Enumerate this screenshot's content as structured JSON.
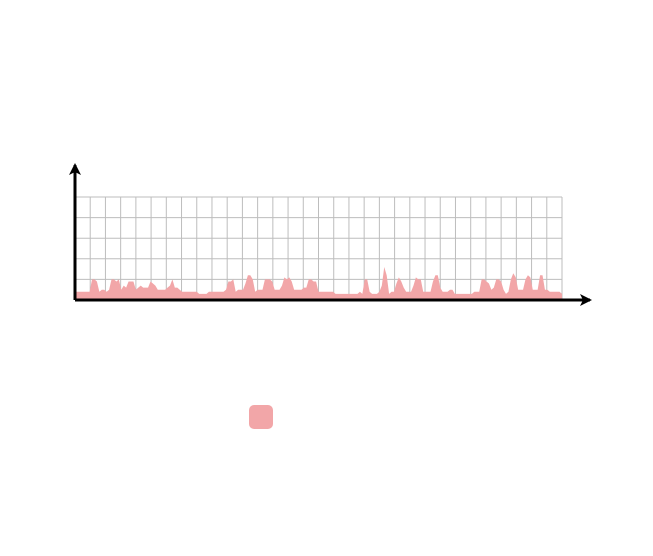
{
  "chart_data": {
    "type": "area",
    "title": "",
    "xlabel": "",
    "ylabel": "",
    "grid": true,
    "legend": "bottom-center",
    "xlim": [
      0,
      200
    ],
    "ylim": [
      0,
      50
    ],
    "x": [
      0,
      1,
      2,
      3,
      4,
      5,
      6,
      7,
      8,
      9,
      10,
      11,
      12,
      13,
      14,
      15,
      16,
      17,
      18,
      19,
      20,
      21,
      22,
      23,
      24,
      25,
      26,
      27,
      28,
      29,
      30,
      31,
      32,
      33,
      34,
      35,
      36,
      37,
      38,
      39,
      40,
      41,
      42,
      43,
      44,
      45,
      46,
      47,
      48,
      49,
      50,
      51,
      52,
      53,
      54,
      55,
      56,
      57,
      58,
      59,
      60,
      61,
      62,
      63,
      64,
      65,
      66,
      67,
      68,
      69,
      70,
      71,
      72,
      73,
      74,
      75,
      76,
      77,
      78,
      79,
      80,
      81,
      82,
      83,
      84,
      85,
      86,
      87,
      88,
      89,
      90,
      91,
      92,
      93,
      94,
      95,
      96,
      97,
      98,
      99,
      100,
      101,
      102,
      103,
      104,
      105,
      106,
      107,
      108,
      109,
      110,
      111,
      112,
      113,
      114,
      115,
      116,
      117,
      118,
      119,
      120,
      121,
      122,
      123,
      124,
      125,
      126,
      127,
      128,
      129,
      130,
      131,
      132,
      133,
      134,
      135,
      136,
      137,
      138,
      139,
      140,
      141,
      142,
      143,
      144,
      145,
      146,
      147,
      148,
      149,
      150,
      151,
      152,
      153,
      154,
      155,
      156,
      157,
      158,
      159,
      160,
      161,
      162,
      163,
      164,
      165,
      166,
      167,
      168,
      169,
      170,
      171,
      172,
      173,
      174,
      175,
      176,
      177,
      178,
      179,
      180,
      181,
      182,
      183,
      184,
      185,
      186,
      187,
      188,
      189,
      190,
      191,
      192,
      193,
      194,
      195,
      196,
      197,
      198,
      199,
      200
    ],
    "series": [
      {
        "color": "#f2a6a8",
        "values": [
          4,
          4,
          4,
          4,
          4,
          4,
          4,
          10,
          10,
          9,
          4,
          5,
          5,
          4,
          5,
          10,
          10,
          9,
          10,
          5,
          7,
          6,
          9,
          9,
          9,
          5,
          6,
          7,
          6,
          6,
          6,
          9,
          8,
          7,
          5,
          5,
          5,
          5,
          6,
          7,
          10,
          6,
          6,
          5,
          4,
          4,
          4,
          4,
          4,
          4,
          4,
          3,
          3,
          3,
          3,
          4,
          4,
          4,
          4,
          4,
          4,
          4,
          5,
          9,
          9,
          10,
          4,
          5,
          5,
          5,
          8,
          12,
          12,
          10,
          4,
          5,
          5,
          5,
          10,
          10,
          10,
          9,
          5,
          5,
          5,
          7,
          11,
          10,
          11,
          9,
          5,
          5,
          5,
          5,
          6,
          6,
          10,
          10,
          9,
          9,
          4,
          4,
          4,
          4,
          4,
          4,
          4,
          3,
          3,
          3,
          3,
          3,
          3,
          3,
          3,
          3,
          3,
          4,
          3,
          10,
          10,
          4,
          3,
          3,
          3,
          4,
          7,
          16,
          12,
          3,
          4,
          4,
          8,
          11,
          9,
          6,
          4,
          4,
          4,
          7,
          11,
          10,
          10,
          4,
          4,
          4,
          4,
          9,
          12,
          12,
          6,
          4,
          4,
          4,
          5,
          5,
          3,
          3,
          3,
          3,
          3,
          3,
          3,
          3,
          4,
          4,
          4,
          10,
          10,
          9,
          8,
          5,
          6,
          10,
          10,
          9,
          5,
          3,
          4,
          10,
          13,
          11,
          5,
          5,
          5,
          10,
          12,
          11,
          5,
          5,
          5,
          12,
          12,
          5,
          5,
          4,
          4,
          4,
          4,
          4,
          3
        ]
      }
    ]
  }
}
